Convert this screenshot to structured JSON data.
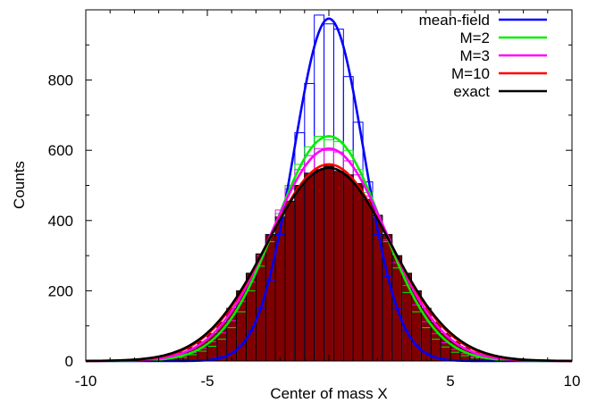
{
  "chart_data": {
    "type": "bar",
    "xlabel": "Center of mass X",
    "ylabel": "Counts",
    "xlim": [
      -10,
      10
    ],
    "ylim": [
      0,
      1000
    ],
    "xticks": [
      -10,
      -5,
      0,
      5,
      10
    ],
    "xtick_labels": [
      "-10",
      "-5",
      "",
      "5",
      "10"
    ],
    "yticks": [
      0,
      200,
      400,
      600,
      800
    ],
    "grid": false,
    "legend_position": "top-right",
    "bin_width": 0.4,
    "series": [
      {
        "name": "mean-field",
        "color": "#0000ff",
        "curve": {
          "peak": 975,
          "mu": 0,
          "sigma": 1.45
        },
        "histogram": [
          {
            "x": -4.4,
            "count": 12
          },
          {
            "x": -4.0,
            "count": 22
          },
          {
            "x": -3.6,
            "count": 45
          },
          {
            "x": -3.2,
            "count": 85
          },
          {
            "x": -2.8,
            "count": 150
          },
          {
            "x": -2.4,
            "count": 230
          },
          {
            "x": -2.0,
            "count": 360
          },
          {
            "x": -1.6,
            "count": 500
          },
          {
            "x": -1.2,
            "count": 650
          },
          {
            "x": -0.8,
            "count": 790
          },
          {
            "x": -0.4,
            "count": 985
          },
          {
            "x": 0.0,
            "count": 960
          },
          {
            "x": 0.4,
            "count": 945
          },
          {
            "x": 0.8,
            "count": 810
          },
          {
            "x": 1.2,
            "count": 680
          },
          {
            "x": 1.6,
            "count": 510
          },
          {
            "x": 2.0,
            "count": 360
          },
          {
            "x": 2.4,
            "count": 240
          },
          {
            "x": 2.8,
            "count": 150
          },
          {
            "x": 3.2,
            "count": 85
          },
          {
            "x": 3.6,
            "count": 45
          },
          {
            "x": 4.0,
            "count": 22
          },
          {
            "x": 4.4,
            "count": 10
          }
        ]
      },
      {
        "name": "M=2",
        "color": "#00ee00",
        "curve": {
          "peak": 640,
          "mu": 0,
          "sigma": 2.2
        },
        "histogram": [
          {
            "x": -6.0,
            "count": 10
          },
          {
            "x": -5.6,
            "count": 18
          },
          {
            "x": -5.2,
            "count": 28
          },
          {
            "x": -4.8,
            "count": 42
          },
          {
            "x": -4.4,
            "count": 62
          },
          {
            "x": -4.0,
            "count": 95
          },
          {
            "x": -3.6,
            "count": 140
          },
          {
            "x": -3.2,
            "count": 200
          },
          {
            "x": -2.8,
            "count": 270
          },
          {
            "x": -2.4,
            "count": 340
          },
          {
            "x": -2.0,
            "count": 420
          },
          {
            "x": -1.6,
            "count": 500
          },
          {
            "x": -1.2,
            "count": 560
          },
          {
            "x": -0.8,
            "count": 610
          },
          {
            "x": -0.4,
            "count": 640
          },
          {
            "x": 0.0,
            "count": 630
          },
          {
            "x": 0.4,
            "count": 625
          },
          {
            "x": 0.8,
            "count": 600
          },
          {
            "x": 1.2,
            "count": 545
          },
          {
            "x": 1.6,
            "count": 480
          },
          {
            "x": 2.0,
            "count": 410
          },
          {
            "x": 2.4,
            "count": 340
          },
          {
            "x": 2.8,
            "count": 265
          },
          {
            "x": 3.2,
            "count": 195
          },
          {
            "x": 3.6,
            "count": 140
          },
          {
            "x": 4.0,
            "count": 95
          },
          {
            "x": 4.4,
            "count": 62
          },
          {
            "x": 4.8,
            "count": 40
          },
          {
            "x": 5.2,
            "count": 25
          },
          {
            "x": 5.6,
            "count": 15
          },
          {
            "x": 6.0,
            "count": 9
          }
        ]
      },
      {
        "name": "M=3",
        "color": "#ff00ff",
        "curve": {
          "peak": 605,
          "mu": 0,
          "sigma": 2.35
        },
        "histogram": [
          {
            "x": -6.4,
            "count": 9
          },
          {
            "x": -6.0,
            "count": 15
          },
          {
            "x": -5.6,
            "count": 24
          },
          {
            "x": -5.2,
            "count": 36
          },
          {
            "x": -4.8,
            "count": 55
          },
          {
            "x": -4.4,
            "count": 80
          },
          {
            "x": -4.0,
            "count": 115
          },
          {
            "x": -3.6,
            "count": 170
          },
          {
            "x": -3.2,
            "count": 225
          },
          {
            "x": -2.8,
            "count": 300
          },
          {
            "x": -2.4,
            "count": 360
          },
          {
            "x": -2.0,
            "count": 430
          },
          {
            "x": -1.6,
            "count": 490
          },
          {
            "x": -1.2,
            "count": 545
          },
          {
            "x": -0.8,
            "count": 585
          },
          {
            "x": -0.4,
            "count": 605
          },
          {
            "x": 0.0,
            "count": 600
          },
          {
            "x": 0.4,
            "count": 595
          },
          {
            "x": 0.8,
            "count": 570
          },
          {
            "x": 1.2,
            "count": 530
          },
          {
            "x": 1.6,
            "count": 470
          },
          {
            "x": 2.0,
            "count": 410
          },
          {
            "x": 2.4,
            "count": 345
          },
          {
            "x": 2.8,
            "count": 280
          },
          {
            "x": 3.2,
            "count": 215
          },
          {
            "x": 3.6,
            "count": 160
          },
          {
            "x": 4.0,
            "count": 112
          },
          {
            "x": 4.4,
            "count": 78
          },
          {
            "x": 4.8,
            "count": 52
          },
          {
            "x": 5.2,
            "count": 33
          },
          {
            "x": 5.6,
            "count": 21
          },
          {
            "x": 6.0,
            "count": 13
          },
          {
            "x": 6.4,
            "count": 8
          }
        ]
      },
      {
        "name": "M=10",
        "color": "#ff0000",
        "curve": {
          "peak": 560,
          "mu": 0,
          "sigma": 2.5
        },
        "histogram": []
      },
      {
        "name": "exact",
        "color": "#000000",
        "curve": {
          "peak": 550,
          "mu": 0,
          "sigma": 2.55
        },
        "histogram": [
          {
            "x": -7.2,
            "count": 5
          },
          {
            "x": -6.8,
            "count": 10
          },
          {
            "x": -6.4,
            "count": 16
          },
          {
            "x": -6.0,
            "count": 25
          },
          {
            "x": -5.6,
            "count": 38
          },
          {
            "x": -5.2,
            "count": 55
          },
          {
            "x": -4.8,
            "count": 78
          },
          {
            "x": -4.4,
            "count": 110
          },
          {
            "x": -4.0,
            "count": 150
          },
          {
            "x": -3.6,
            "count": 200
          },
          {
            "x": -3.2,
            "count": 250
          },
          {
            "x": -2.8,
            "count": 305
          },
          {
            "x": -2.4,
            "count": 360
          },
          {
            "x": -2.0,
            "count": 410
          },
          {
            "x": -1.6,
            "count": 455
          },
          {
            "x": -1.2,
            "count": 500
          },
          {
            "x": -0.8,
            "count": 535
          },
          {
            "x": -0.4,
            "count": 545
          },
          {
            "x": 0.0,
            "count": 555
          },
          {
            "x": 0.4,
            "count": 540
          },
          {
            "x": 0.8,
            "count": 530
          },
          {
            "x": 1.2,
            "count": 505
          },
          {
            "x": 1.6,
            "count": 460
          },
          {
            "x": 2.0,
            "count": 415
          },
          {
            "x": 2.4,
            "count": 360
          },
          {
            "x": 2.8,
            "count": 300
          },
          {
            "x": 3.2,
            "count": 250
          },
          {
            "x": 3.6,
            "count": 200
          },
          {
            "x": 4.0,
            "count": 150
          },
          {
            "x": 4.4,
            "count": 110
          },
          {
            "x": 4.8,
            "count": 78
          },
          {
            "x": 5.2,
            "count": 55
          },
          {
            "x": 5.6,
            "count": 38
          },
          {
            "x": 6.0,
            "count": 25
          },
          {
            "x": 6.4,
            "count": 16
          },
          {
            "x": 6.8,
            "count": 10
          },
          {
            "x": 7.2,
            "count": 6
          }
        ]
      }
    ],
    "filled_histogram": {
      "color": "#800000",
      "source": "exact"
    }
  }
}
